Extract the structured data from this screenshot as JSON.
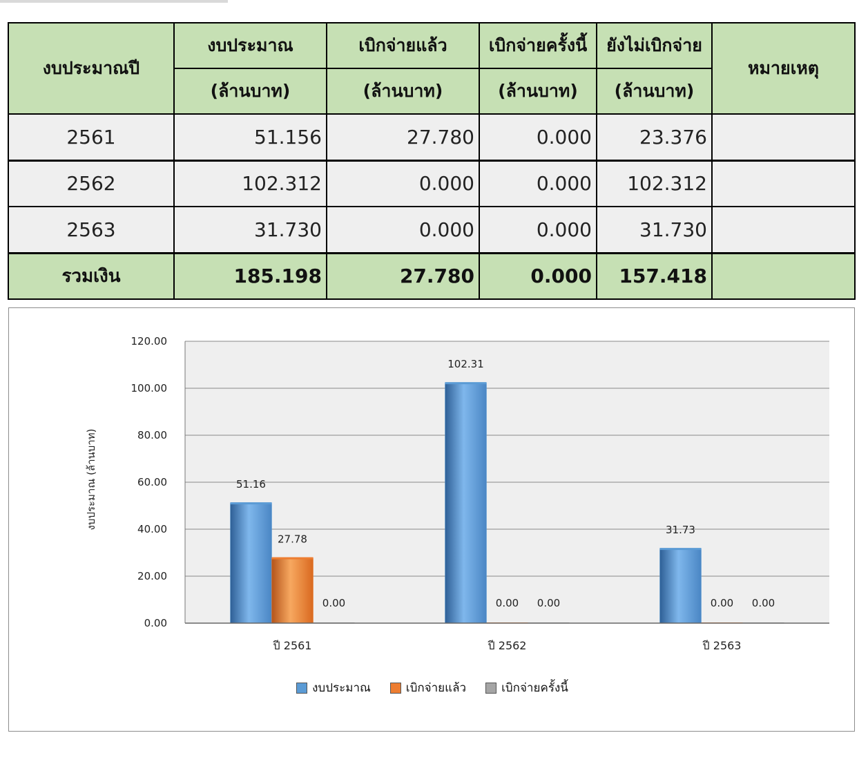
{
  "table": {
    "headers": {
      "year": "งบประมาณปี",
      "budget": "งบประมาณ",
      "disbursed": "เบิกจ่ายแล้ว",
      "this_time": "เบิกจ่ายครั้งนี้",
      "not_disbursed": "ยังไม่เบิกจ่าย",
      "remark": "หมายเหตุ",
      "unit": "(ล้านบาท)"
    },
    "rows": [
      {
        "year": "2561",
        "budget": "51.156",
        "disbursed": "27.780",
        "this_time": "0.000",
        "not_disbursed": "23.376",
        "remark": ""
      },
      {
        "year": "2562",
        "budget": "102.312",
        "disbursed": "0.000",
        "this_time": "0.000",
        "not_disbursed": "102.312",
        "remark": ""
      },
      {
        "year": "2563",
        "budget": "31.730",
        "disbursed": "0.000",
        "this_time": "0.000",
        "not_disbursed": "31.730",
        "remark": ""
      }
    ],
    "total": {
      "label": "รวมเงิน",
      "budget": "185.198",
      "disbursed": "27.780",
      "this_time": "0.000",
      "not_disbursed": "157.418",
      "remark": ""
    }
  },
  "chart_data": {
    "type": "bar",
    "categories": [
      "ปี 2561",
      "ปี 2562",
      "ปี 2563"
    ],
    "series": [
      {
        "name": "งบประมาณ",
        "values": [
          51.16,
          102.31,
          31.73
        ],
        "labels": [
          "51.16",
          "102.31",
          "31.73"
        ],
        "color": "#5b9bd5"
      },
      {
        "name": "เบิกจ่ายแล้ว",
        "values": [
          27.78,
          0.0,
          0.0
        ],
        "labels": [
          "27.78",
          "0.00",
          "0.00"
        ],
        "color": "#ed7d31"
      },
      {
        "name": "เบิกจ่ายครั้งนี้",
        "values": [
          0.0,
          0.0,
          0.0
        ],
        "labels": [
          "0.00",
          "0.00",
          "0.00"
        ],
        "color": "#a5a5a5"
      }
    ],
    "ylabel": "งบประมาณ (ล้านบาท)",
    "ylim": [
      0,
      120
    ],
    "yticks": [
      "0.00",
      "20.00",
      "40.00",
      "60.00",
      "80.00",
      "100.00",
      "120.00"
    ],
    "grid": true,
    "legend_position": "bottom"
  }
}
